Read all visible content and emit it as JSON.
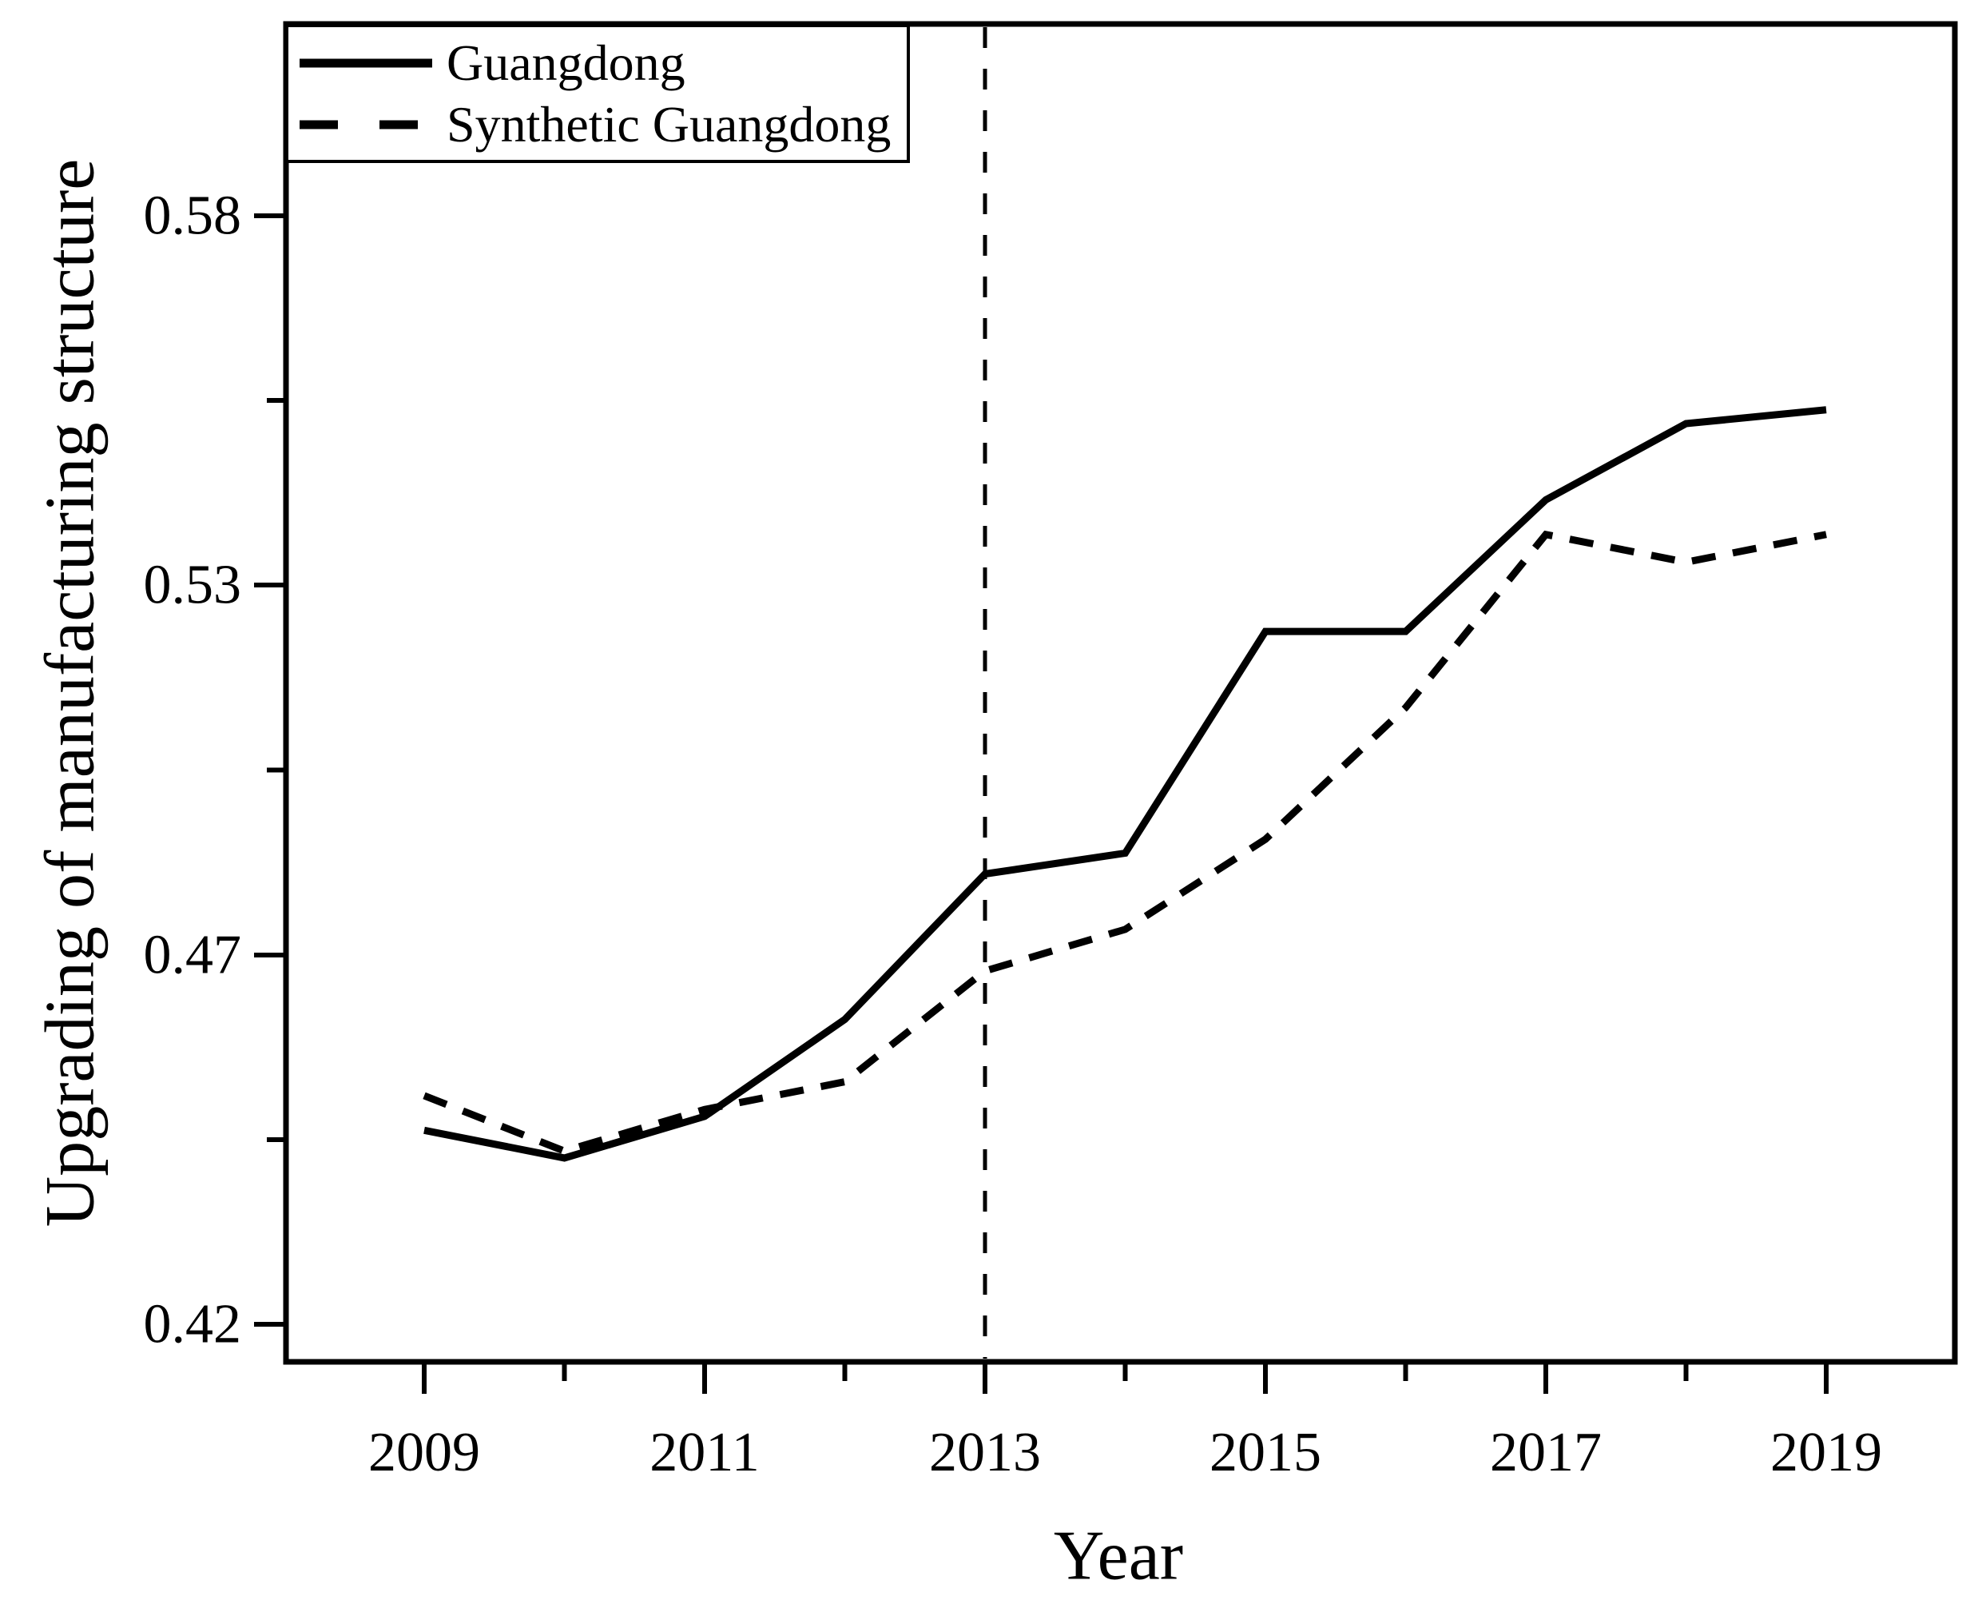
{
  "figure": {
    "background_color": "#ffffff",
    "ink_color": "#000000"
  },
  "chart_data": {
    "type": "line",
    "title": "",
    "xlabel": "Year",
    "ylabel": "Upgrading of manufacturing structure",
    "x": [
      2009,
      2010,
      2011,
      2012,
      2013,
      2014,
      2015,
      2016,
      2017,
      2018,
      2019
    ],
    "x_tick_labels": [
      2009,
      2011,
      2013,
      2015,
      2017,
      2019
    ],
    "y_ticks": [
      {
        "label": "0.58",
        "value": 0.58
      },
      {
        "label": "0.53",
        "value": 0.5267
      },
      {
        "label": "0.47",
        "value": 0.4733
      },
      {
        "label": "0.42",
        "value": 0.42
      }
    ],
    "ylim": [
      0.415,
      0.585
    ],
    "grid": false,
    "legend_position": "top-left",
    "vline": {
      "x": 2013,
      "style": "dashed"
    },
    "series": [
      {
        "name": "Guangdong",
        "style": "solid",
        "values": [
          0.448,
          0.444,
          0.45,
          0.464,
          0.485,
          0.488,
          0.52,
          0.52,
          0.539,
          0.55,
          0.552
        ]
      },
      {
        "name": "Synthetic Guangdong",
        "style": "dashed",
        "values": [
          0.453,
          0.445,
          0.451,
          0.455,
          0.471,
          0.477,
          0.49,
          0.509,
          0.534,
          0.53,
          0.534
        ]
      }
    ]
  }
}
